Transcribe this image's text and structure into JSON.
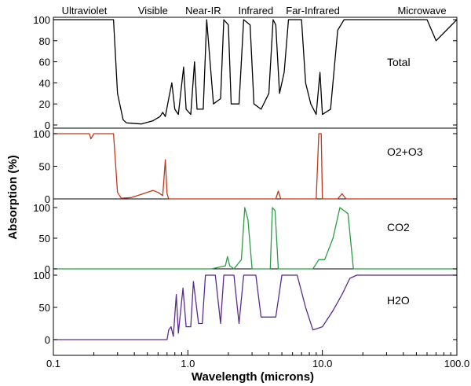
{
  "chart_data": {
    "type": "line",
    "title": "",
    "xlabel": "Wavelength (microns)",
    "ylabel": "Absorption (%)",
    "x_scale": "log",
    "xlim": [
      0.1,
      100.0
    ],
    "x_tick_labels": [
      "0.1",
      "1.0",
      "10.0",
      "100.0"
    ],
    "y_tick_labels": [
      "0",
      "50",
      "100"
    ],
    "y_tick_labels_total": [
      "0",
      "20",
      "40",
      "60",
      "80",
      "100"
    ],
    "regions": [
      {
        "label": "Ultraviolet",
        "x": 0.17
      },
      {
        "label": "Visible",
        "x": 0.55
      },
      {
        "label": "Near-IR",
        "x": 1.3
      },
      {
        "label": "Infrared",
        "x": 3.2
      },
      {
        "label": "Far-Infrared",
        "x": 8.5
      },
      {
        "label": "Microwave",
        "x": 55.0
      }
    ],
    "panels": [
      {
        "key": "total",
        "name": "Total",
        "color": "#000000",
        "points": [
          [
            0.1,
            100
          ],
          [
            0.28,
            100
          ],
          [
            0.3,
            30
          ],
          [
            0.33,
            5
          ],
          [
            0.35,
            2
          ],
          [
            0.45,
            1
          ],
          [
            0.55,
            4
          ],
          [
            0.62,
            8
          ],
          [
            0.65,
            12
          ],
          [
            0.68,
            8
          ],
          [
            0.72,
            25
          ],
          [
            0.76,
            40
          ],
          [
            0.8,
            15
          ],
          [
            0.85,
            10
          ],
          [
            0.93,
            55
          ],
          [
            0.97,
            15
          ],
          [
            1.05,
            10
          ],
          [
            1.12,
            60
          ],
          [
            1.17,
            15
          ],
          [
            1.3,
            15
          ],
          [
            1.38,
            100
          ],
          [
            1.55,
            20
          ],
          [
            1.75,
            25
          ],
          [
            1.85,
            100
          ],
          [
            2.0,
            95
          ],
          [
            2.1,
            20
          ],
          [
            2.4,
            20
          ],
          [
            2.6,
            100
          ],
          [
            2.9,
            95
          ],
          [
            3.1,
            20
          ],
          [
            3.5,
            15
          ],
          [
            4.0,
            30
          ],
          [
            4.3,
            100
          ],
          [
            4.5,
            95
          ],
          [
            4.8,
            30
          ],
          [
            5.2,
            50
          ],
          [
            5.6,
            100
          ],
          [
            7.0,
            100
          ],
          [
            7.5,
            40
          ],
          [
            8.2,
            20
          ],
          [
            9.0,
            10
          ],
          [
            9.6,
            50
          ],
          [
            10.0,
            10
          ],
          [
            11.5,
            15
          ],
          [
            13.0,
            90
          ],
          [
            14.5,
            100
          ],
          [
            17.0,
            100
          ],
          [
            25.0,
            100
          ],
          [
            60.0,
            100
          ],
          [
            70.0,
            80
          ],
          [
            100.0,
            100
          ]
        ]
      },
      {
        "key": "o2o3",
        "name": "O2+O3",
        "color": "#c0391b",
        "points": [
          [
            0.1,
            100
          ],
          [
            0.185,
            100
          ],
          [
            0.19,
            92
          ],
          [
            0.2,
            100
          ],
          [
            0.28,
            100
          ],
          [
            0.3,
            10
          ],
          [
            0.32,
            1
          ],
          [
            0.38,
            2
          ],
          [
            0.45,
            7
          ],
          [
            0.55,
            13
          ],
          [
            0.6,
            10
          ],
          [
            0.65,
            5
          ],
          [
            0.68,
            60
          ],
          [
            0.7,
            8
          ],
          [
            0.72,
            0
          ],
          [
            2.0,
            0
          ],
          [
            4.5,
            0
          ],
          [
            4.7,
            12
          ],
          [
            4.9,
            0
          ],
          [
            9.0,
            0
          ],
          [
            9.4,
            100
          ],
          [
            9.8,
            100
          ],
          [
            10.0,
            0
          ],
          [
            13.0,
            0
          ],
          [
            14.0,
            8
          ],
          [
            15.0,
            0
          ],
          [
            100.0,
            0
          ]
        ]
      },
      {
        "key": "co2",
        "name": "CO2",
        "color": "#2c9c45",
        "points": [
          [
            0.1,
            0
          ],
          [
            1.5,
            0
          ],
          [
            1.9,
            5
          ],
          [
            1.97,
            20
          ],
          [
            2.05,
            5
          ],
          [
            2.2,
            0
          ],
          [
            2.5,
            15
          ],
          [
            2.65,
            100
          ],
          [
            2.8,
            80
          ],
          [
            3.0,
            0
          ],
          [
            4.1,
            0
          ],
          [
            4.25,
            100
          ],
          [
            4.45,
            95
          ],
          [
            4.7,
            0
          ],
          [
            8.5,
            0
          ],
          [
            9.4,
            15
          ],
          [
            10.4,
            15
          ],
          [
            12.0,
            50
          ],
          [
            13.5,
            100
          ],
          [
            15.5,
            90
          ],
          [
            17.0,
            0
          ],
          [
            100.0,
            0
          ]
        ]
      },
      {
        "key": "h2o",
        "name": "H2O",
        "color": "#5b2c8c",
        "points": [
          [
            0.1,
            0
          ],
          [
            0.7,
            0
          ],
          [
            0.72,
            15
          ],
          [
            0.75,
            20
          ],
          [
            0.78,
            5
          ],
          [
            0.82,
            70
          ],
          [
            0.85,
            10
          ],
          [
            0.92,
            80
          ],
          [
            0.97,
            20
          ],
          [
            1.05,
            20
          ],
          [
            1.1,
            90
          ],
          [
            1.2,
            25
          ],
          [
            1.28,
            25
          ],
          [
            1.35,
            100
          ],
          [
            1.6,
            100
          ],
          [
            1.75,
            25
          ],
          [
            1.85,
            100
          ],
          [
            2.2,
            100
          ],
          [
            2.4,
            25
          ],
          [
            2.6,
            100
          ],
          [
            3.2,
            100
          ],
          [
            3.5,
            35
          ],
          [
            4.5,
            35
          ],
          [
            5.0,
            100
          ],
          [
            6.5,
            100
          ],
          [
            7.5,
            50
          ],
          [
            8.5,
            15
          ],
          [
            10.0,
            20
          ],
          [
            12.0,
            45
          ],
          [
            14.0,
            70
          ],
          [
            16.0,
            95
          ],
          [
            18.0,
            100
          ],
          [
            100.0,
            100
          ]
        ]
      }
    ]
  }
}
